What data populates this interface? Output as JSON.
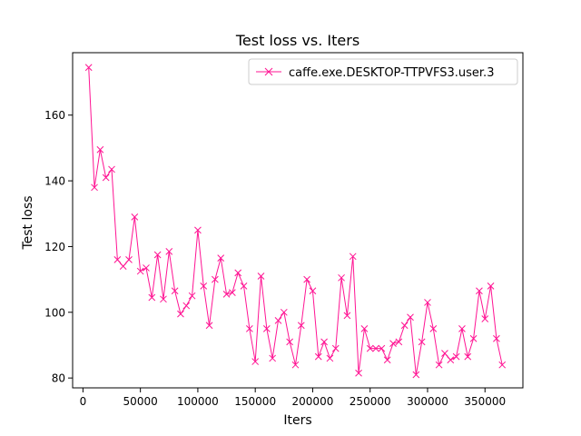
{
  "chart_data": {
    "type": "line",
    "title": "Test loss  vs. Iters",
    "xlabel": "Iters",
    "ylabel": "Test loss",
    "xlim": [
      -9000,
      383000
    ],
    "ylim": [
      77,
      179
    ],
    "xticks": [
      0,
      50000,
      100000,
      150000,
      200000,
      250000,
      300000,
      350000
    ],
    "xtick_labels": [
      "0",
      "50000",
      "100000",
      "150000",
      "200000",
      "250000",
      "300000",
      "350000"
    ],
    "yticks": [
      80,
      100,
      120,
      140,
      160
    ],
    "ytick_labels": [
      "80",
      "100",
      "120",
      "140",
      "160"
    ],
    "grid": false,
    "legend_position": "top-right",
    "series": [
      {
        "name": "caffe.exe.DESKTOP-TTPVFS3.user.3",
        "color": "#ff1493",
        "marker": "x",
        "x": [
          5000,
          10000,
          15000,
          20000,
          25000,
          30000,
          35000,
          40000,
          45000,
          50000,
          55000,
          60000,
          65000,
          70000,
          75000,
          80000,
          85000,
          90000,
          95000,
          100000,
          105000,
          110000,
          115000,
          120000,
          125000,
          130000,
          135000,
          140000,
          145000,
          150000,
          155000,
          160000,
          165000,
          170000,
          175000,
          180000,
          185000,
          190000,
          195000,
          200000,
          205000,
          210000,
          215000,
          220000,
          225000,
          230000,
          235000,
          240000,
          245000,
          250000,
          255000,
          260000,
          265000,
          270000,
          275000,
          280000,
          285000,
          290000,
          295000,
          300000,
          305000,
          310000,
          315000,
          320000,
          325000,
          330000,
          335000,
          340000,
          345000,
          350000,
          355000,
          360000,
          365000
        ],
        "y": [
          174.5,
          138,
          149.5,
          141,
          143.5,
          116,
          114,
          116,
          129,
          112.5,
          113.5,
          104.5,
          117.5,
          104,
          118.5,
          106.5,
          99.5,
          102,
          105,
          125,
          108,
          96,
          110,
          116.5,
          105.5,
          106,
          112,
          108,
          95,
          85,
          111,
          95,
          86,
          97.5,
          100,
          91,
          84,
          96,
          110,
          106.5,
          86.5,
          91,
          86,
          89,
          110.5,
          99,
          117,
          81.5,
          95,
          89,
          89,
          89,
          85.5,
          90.5,
          91,
          96,
          98.5,
          81,
          91,
          103,
          95,
          84,
          87.5,
          85.5,
          86.5,
          95,
          86.5,
          92,
          106.5,
          98,
          108,
          92,
          84
        ]
      }
    ]
  }
}
